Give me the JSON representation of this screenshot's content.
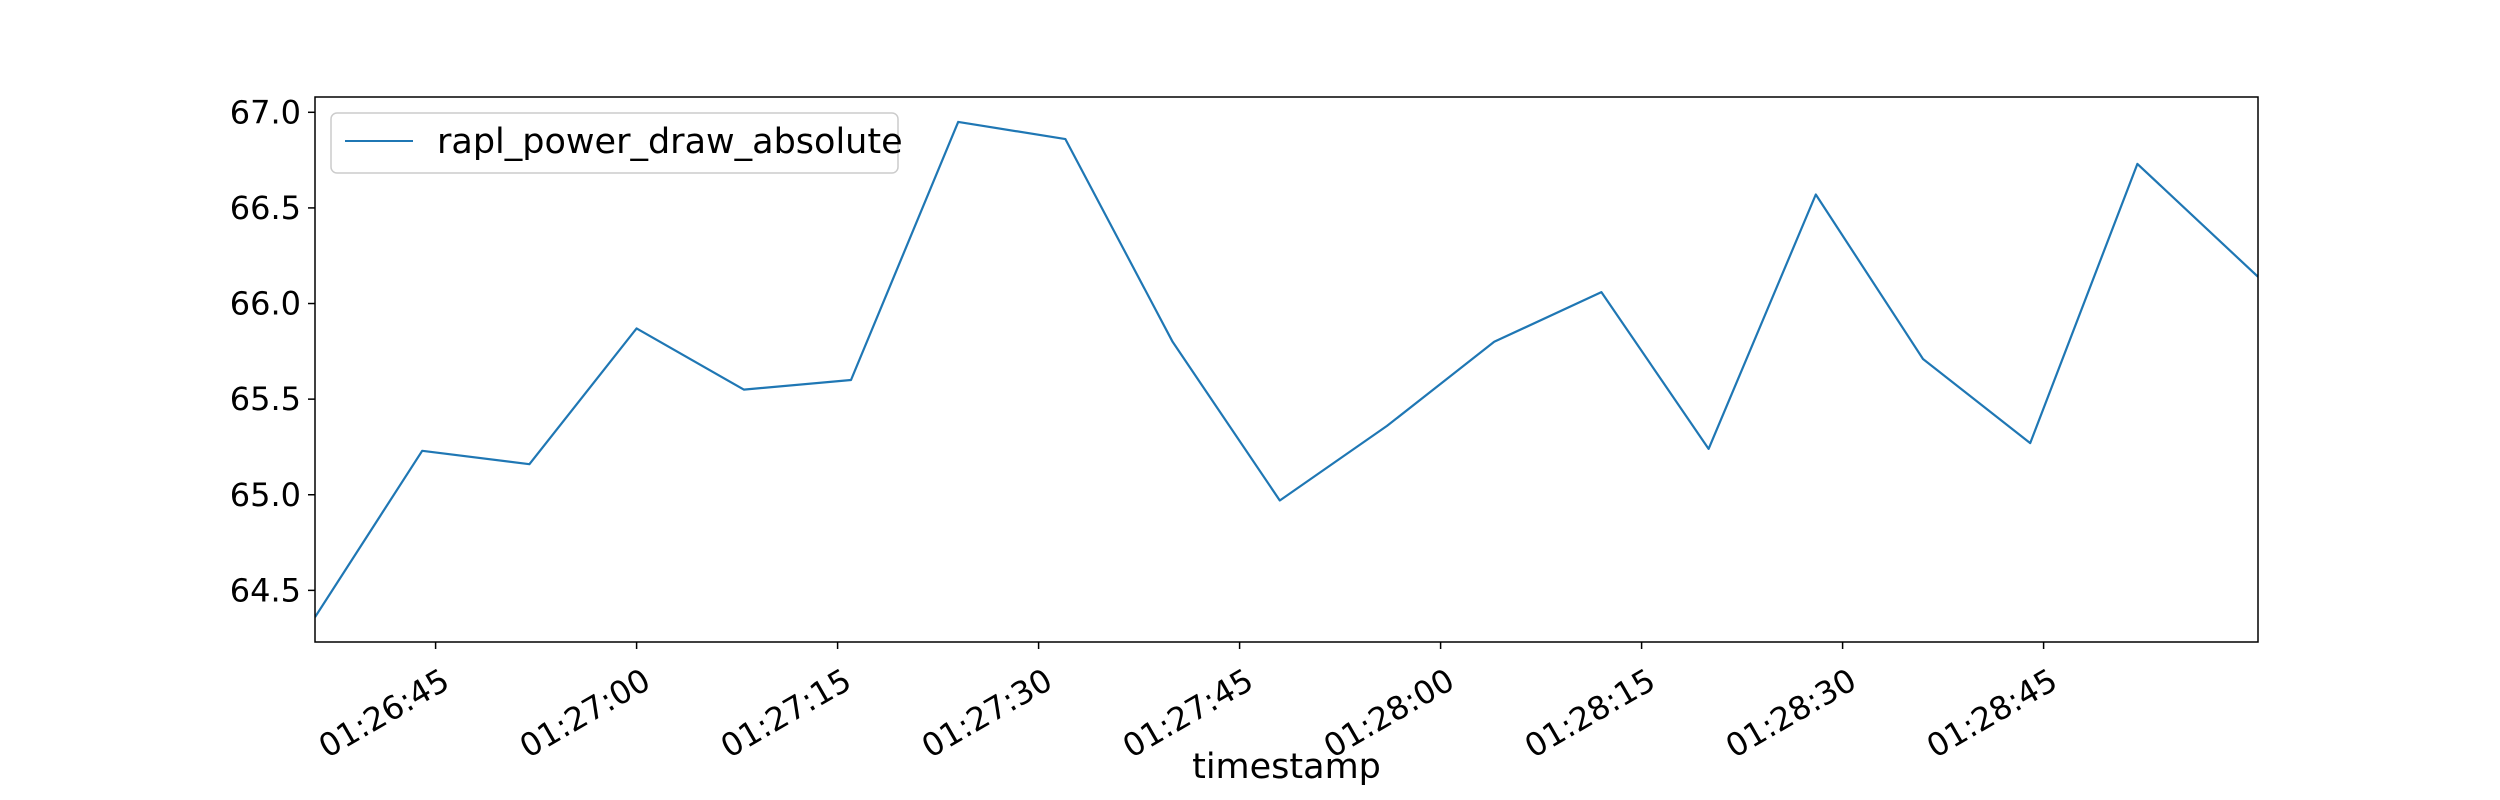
{
  "chart_data": {
    "type": "line",
    "title": "",
    "xlabel": "timestamp",
    "ylabel": "",
    "legend": {
      "placement": "top-left",
      "entries": [
        "rapl_power_draw_absolute"
      ]
    },
    "grid": false,
    "x_ticks": [
      "01:26:45",
      "01:27:00",
      "01:27:15",
      "01:27:30",
      "01:27:45",
      "01:28:00",
      "01:28:15",
      "01:28:30",
      "01:28:45"
    ],
    "y_ticks": [
      "64.5",
      "65.0",
      "65.5",
      "66.0",
      "66.5",
      "67.0"
    ],
    "xlim": [
      "01:26:36",
      "01:29:01"
    ],
    "ylim": [
      64.23,
      67.08
    ],
    "series": [
      {
        "name": "rapl_power_draw_absolute",
        "color": "#1f77b4",
        "x": [
          "01:26:36",
          "01:26:44",
          "01:26:52",
          "01:27:00",
          "01:27:08",
          "01:27:16",
          "01:27:24",
          "01:27:32",
          "01:27:40",
          "01:27:48",
          "01:27:56",
          "01:28:04",
          "01:28:12",
          "01:28:20",
          "01:28:28",
          "01:28:36",
          "01:28:44",
          "01:28:52",
          "01:29:01"
        ],
        "values": [
          64.36,
          65.23,
          65.16,
          65.87,
          65.55,
          65.6,
          66.95,
          66.86,
          65.8,
          64.97,
          65.36,
          65.8,
          66.06,
          65.24,
          66.57,
          65.71,
          65.27,
          66.73,
          66.14
        ]
      }
    ]
  }
}
